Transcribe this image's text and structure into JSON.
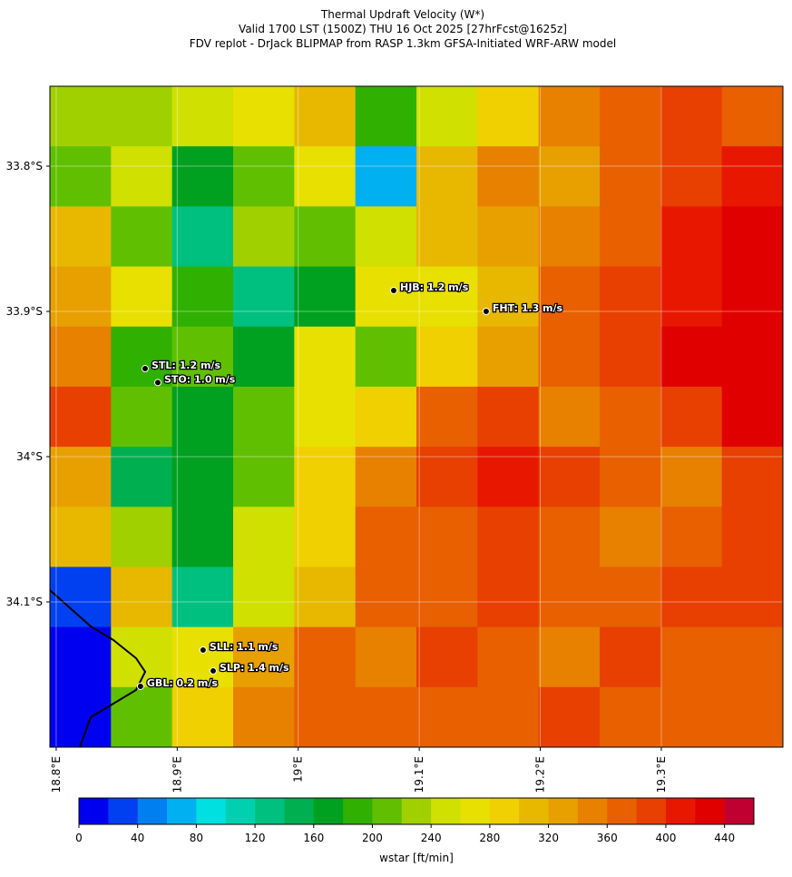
{
  "title": [
    "Thermal Updraft Velocity (W*)",
    "Valid 1700 LST (1500Z) THU 16 Oct 2025 [27hrFcst@1625z]",
    "FDV replot - DrJack BLIPMAP from RASP 1.3km GFSA-Initiated WRF-ARW model"
  ],
  "map": {
    "lonlim": [
      18.7948,
      19.4005
    ],
    "latlim": [
      -33.745,
      -34.2
    ],
    "lonticks": [
      {
        "value": 18.8,
        "label": "18.8°E"
      },
      {
        "value": 18.9,
        "label": "18.9°E"
      },
      {
        "value": 19.0,
        "label": "19°E"
      },
      {
        "value": 19.1,
        "label": "19.1°E"
      },
      {
        "value": 19.2,
        "label": "19.2°E"
      },
      {
        "value": 19.3,
        "label": "19.3°E"
      }
    ],
    "latticks": [
      {
        "value": -33.8,
        "label": "33.8°S"
      },
      {
        "value": -33.9,
        "label": "33.9°S"
      },
      {
        "value": -34.0,
        "label": "34°S"
      },
      {
        "value": -34.1,
        "label": "34.1°S"
      }
    ],
    "grid": {
      "values": [
        [
          220,
          220,
          240,
          260,
          300,
          180,
          240,
          280,
          340,
          360,
          380,
          360
        ],
        [
          200,
          240,
          160,
          200,
          260,
          60,
          300,
          340,
          320,
          360,
          380,
          400
        ],
        [
          300,
          200,
          120,
          220,
          200,
          240,
          300,
          320,
          340,
          360,
          400,
          420
        ],
        [
          320,
          260,
          180,
          120,
          160,
          260,
          260,
          300,
          360,
          380,
          400,
          420
        ],
        [
          340,
          180,
          200,
          160,
          260,
          200,
          280,
          320,
          360,
          380,
          420,
          420
        ],
        [
          380,
          200,
          160,
          200,
          260,
          280,
          360,
          380,
          340,
          360,
          380,
          420
        ],
        [
          320,
          140,
          160,
          200,
          280,
          340,
          380,
          400,
          380,
          360,
          340,
          380
        ],
        [
          300,
          220,
          160,
          240,
          280,
          360,
          360,
          380,
          360,
          340,
          360,
          380
        ],
        [
          20,
          300,
          120,
          240,
          300,
          360,
          360,
          380,
          360,
          360,
          380,
          380
        ],
        [
          0,
          240,
          260,
          320,
          360,
          340,
          380,
          360,
          340,
          380,
          360,
          360
        ],
        [
          0,
          200,
          280,
          340,
          360,
          360,
          360,
          360,
          380,
          360,
          360,
          360
        ]
      ]
    },
    "stations": [
      {
        "label": "HJB: 1.2 m/s",
        "lon": 19.0789,
        "lat": -33.8856
      },
      {
        "label": "FHT: 1.3 m/s",
        "lon": 19.1553,
        "lat": -33.9
      },
      {
        "label": "STL: 1.2 m/s",
        "lon": 18.8735,
        "lat": -33.9394
      },
      {
        "label": "STO: 1.0 m/s",
        "lon": 18.884,
        "lat": -33.949
      },
      {
        "label": "SLL: 1.1 m/s",
        "lon": 18.9214,
        "lat": -34.1331
      },
      {
        "label": "SLP: 1.4 m/s",
        "lon": 18.9297,
        "lat": -34.1475
      },
      {
        "label": "GBL: 0.2 m/s",
        "lon": 18.8697,
        "lat": -34.1581
      }
    ]
  },
  "colorbar": {
    "label": "wstar [ft/min]",
    "range": [
      0,
      460
    ],
    "ticks": [
      0,
      40,
      80,
      120,
      160,
      200,
      240,
      280,
      320,
      360,
      400,
      440
    ],
    "colors": [
      "#0000f0",
      "#0040f0",
      "#0080f0",
      "#00b0f0",
      "#00e0e0",
      "#00d0b0",
      "#00c080",
      "#00b050",
      "#00a020",
      "#30b000",
      "#60c000",
      "#a0d000",
      "#d0e000",
      "#e8e000",
      "#f0d000",
      "#e8b800",
      "#e8a000",
      "#e88000",
      "#e86000",
      "#e84000",
      "#e81800",
      "#e00000",
      "#c00030"
    ]
  }
}
